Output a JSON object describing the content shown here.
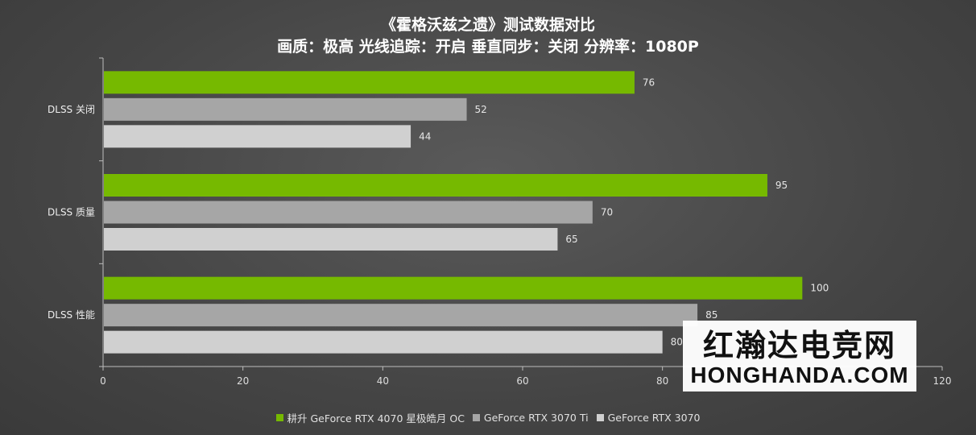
{
  "chart_data": {
    "type": "bar",
    "orientation": "horizontal",
    "title": "《霍格沃兹之遗》测试数据对比",
    "subtitle": "画质：极高 光线追踪：开启 垂直同步：关闭 分辨率：1080P",
    "categories": [
      "DLSS 关闭",
      "DLSS 质量",
      "DLSS 性能"
    ],
    "series": [
      {
        "name": "耕升 GeForce RTX 4070 星极皓月 OC",
        "color": "#76b900",
        "values": [
          76,
          95,
          100
        ]
      },
      {
        "name": "GeForce RTX 3070 Ti",
        "color": "#a6a6a6",
        "values": [
          52,
          70,
          85
        ]
      },
      {
        "name": "GeForce RTX 3070",
        "color": "#d0d0d0",
        "values": [
          44,
          65,
          80
        ]
      }
    ],
    "xlim": [
      0,
      120
    ],
    "xticks": [
      0,
      20,
      40,
      60,
      80,
      100,
      120
    ],
    "grid": false,
    "legend_position": "bottom"
  },
  "watermark": {
    "line1": "红瀚达电竞网",
    "line2": "HONGHANDA.COM"
  }
}
